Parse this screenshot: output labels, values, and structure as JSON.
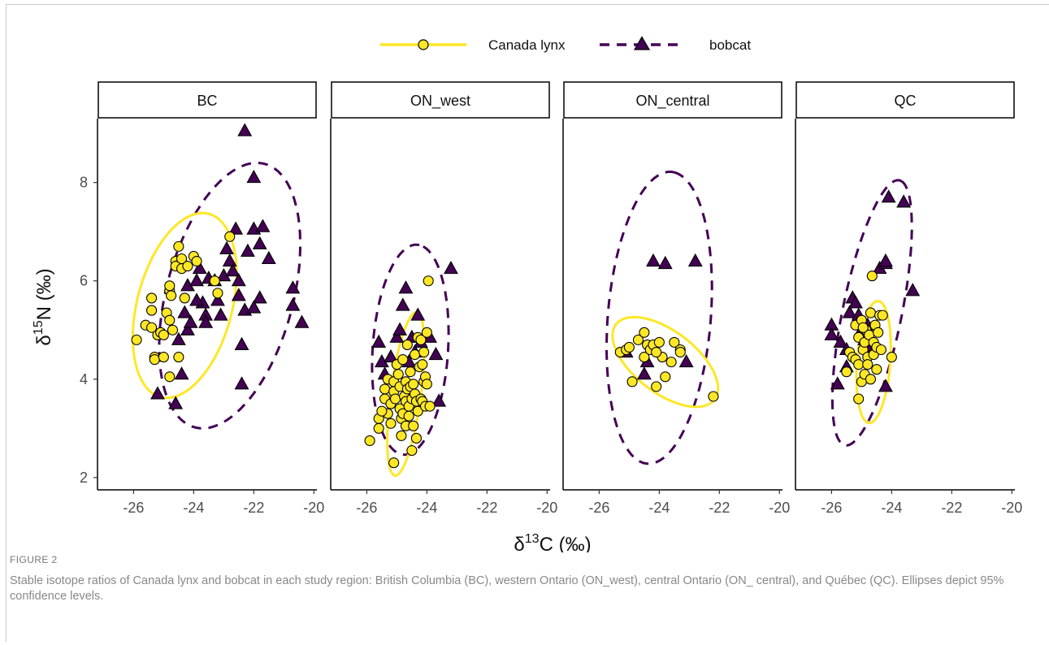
{
  "caption": {
    "label": "FIGURE 2",
    "text": "Stable isotope ratios of Canada lynx and bobcat in each study region: British Columbia (BC), western Ontario (ON_west), central Ontario (ON_ central), and Québec (QC). Ellipses depict 95% confidence levels."
  },
  "colors": {
    "lynx_fill": "#FDE725",
    "lynx_line": "#FDE725",
    "bobcat_fill": "#440154",
    "bobcat_line": "#440154",
    "marker_outline": "#000000",
    "strip_border": "#000000"
  },
  "chart_data": {
    "type": "scatter",
    "facets": [
      "BC",
      "ON_west",
      "ON_central",
      "QC"
    ],
    "xlabel": "δ13C (‰)",
    "ylabel": "δ15N (‰)",
    "xlim": [
      -27.2,
      -19.9
    ],
    "ylim": [
      1.75,
      9.3
    ],
    "xticks": [
      -26,
      -24,
      -22,
      -20
    ],
    "yticks": [
      2,
      4,
      6,
      8
    ],
    "legend_position": "top",
    "grid": false,
    "series": [
      {
        "name": "Canada lynx",
        "marker": "circle",
        "line": "solid",
        "panels": {
          "BC": [
            [
              -25.9,
              4.8
            ],
            [
              -25.6,
              5.1
            ],
            [
              -25.4,
              5.4
            ],
            [
              -25.4,
              5.65
            ],
            [
              -25.3,
              4.45
            ],
            [
              -25.2,
              4.9
            ],
            [
              -25.4,
              5.05
            ],
            [
              -25.1,
              4.95
            ],
            [
              -25.3,
              4.4
            ],
            [
              -25.0,
              4.9
            ],
            [
              -25.0,
              4.45
            ],
            [
              -24.9,
              5.35
            ],
            [
              -24.8,
              5.8
            ],
            [
              -24.8,
              5.9
            ],
            [
              -24.75,
              5.7
            ],
            [
              -24.6,
              6.4
            ],
            [
              -24.6,
              6.3
            ],
            [
              -24.5,
              6.7
            ],
            [
              -24.4,
              6.45
            ],
            [
              -24.4,
              6.25
            ],
            [
              -24.3,
              5.65
            ],
            [
              -24.8,
              4.05
            ],
            [
              -24.7,
              5.0
            ],
            [
              -24.2,
              6.3
            ],
            [
              -24.0,
              6.5
            ],
            [
              -23.9,
              6.4
            ],
            [
              -23.3,
              6.0
            ],
            [
              -23.2,
              5.75
            ],
            [
              -22.8,
              6.9
            ],
            [
              -24.5,
              4.45
            ],
            [
              -24.8,
              5.2
            ]
          ],
          "ON_west": [
            [
              -25.9,
              2.75
            ],
            [
              -25.6,
              3.0
            ],
            [
              -25.6,
              3.2
            ],
            [
              -25.4,
              3.8
            ],
            [
              -25.4,
              3.6
            ],
            [
              -25.3,
              4.0
            ],
            [
              -25.3,
              3.3
            ],
            [
              -25.2,
              3.5
            ],
            [
              -25.2,
              3.1
            ],
            [
              -25.1,
              2.3
            ],
            [
              -25.1,
              3.75
            ],
            [
              -25.1,
              3.95
            ],
            [
              -25.05,
              3.6
            ],
            [
              -25.0,
              4.3
            ],
            [
              -24.95,
              4.1
            ],
            [
              -24.9,
              3.85
            ],
            [
              -24.9,
              3.4
            ],
            [
              -24.85,
              3.2
            ],
            [
              -24.85,
              2.85
            ],
            [
              -24.8,
              4.4
            ],
            [
              -24.8,
              3.3
            ],
            [
              -24.75,
              3.65
            ],
            [
              -24.7,
              3.95
            ],
            [
              -24.7,
              3.55
            ],
            [
              -24.7,
              3.05
            ],
            [
              -24.65,
              4.7
            ],
            [
              -24.65,
              3.8
            ],
            [
              -24.6,
              3.45
            ],
            [
              -24.6,
              3.25
            ],
            [
              -24.55,
              4.15
            ],
            [
              -24.55,
              3.85
            ],
            [
              -24.5,
              3.6
            ],
            [
              -24.5,
              2.55
            ],
            [
              -24.45,
              3.05
            ],
            [
              -24.45,
              3.9
            ],
            [
              -24.4,
              4.5
            ],
            [
              -24.4,
              3.7
            ],
            [
              -24.35,
              3.55
            ],
            [
              -24.35,
              2.8
            ],
            [
              -24.3,
              4.85
            ],
            [
              -24.3,
              3.35
            ],
            [
              -24.25,
              4.25
            ],
            [
              -24.2,
              4.8
            ],
            [
              -24.2,
              3.6
            ],
            [
              -24.15,
              4.3
            ],
            [
              -24.15,
              3.55
            ],
            [
              -24.1,
              4.55
            ],
            [
              -24.1,
              3.95
            ],
            [
              -24.05,
              3.45
            ],
            [
              -24.05,
              4.05
            ],
            [
              -24.0,
              4.95
            ],
            [
              -24.0,
              3.9
            ],
            [
              -23.95,
              6.0
            ],
            [
              -23.9,
              3.45
            ],
            [
              -25.5,
              3.35
            ]
          ],
          "ON_central": [
            [
              -25.3,
              4.55
            ],
            [
              -25.1,
              4.6
            ],
            [
              -25.0,
              4.65
            ],
            [
              -24.9,
              3.95
            ],
            [
              -24.7,
              4.8
            ],
            [
              -24.5,
              4.45
            ],
            [
              -24.5,
              4.95
            ],
            [
              -24.4,
              4.7
            ],
            [
              -24.3,
              4.6
            ],
            [
              -24.2,
              4.7
            ],
            [
              -24.1,
              3.85
            ],
            [
              -24.0,
              4.75
            ],
            [
              -23.9,
              4.45
            ],
            [
              -23.8,
              4.05
            ],
            [
              -23.6,
              4.35
            ],
            [
              -23.5,
              4.75
            ],
            [
              -23.3,
              4.6
            ],
            [
              -23.3,
              4.55
            ],
            [
              -24.1,
              4.55
            ],
            [
              -22.2,
              3.65
            ]
          ],
          "QC": [
            [
              -25.5,
              4.15
            ],
            [
              -25.4,
              4.55
            ],
            [
              -25.3,
              4.45
            ],
            [
              -25.2,
              5.1
            ],
            [
              -25.2,
              4.4
            ],
            [
              -25.1,
              4.85
            ],
            [
              -25.1,
              4.3
            ],
            [
              -25.0,
              3.95
            ],
            [
              -25.0,
              5.2
            ],
            [
              -24.95,
              4.6
            ],
            [
              -24.9,
              4.1
            ],
            [
              -24.9,
              4.75
            ],
            [
              -24.85,
              5.0
            ],
            [
              -24.8,
              4.45
            ],
            [
              -24.8,
              4.3
            ],
            [
              -24.75,
              4.9
            ],
            [
              -24.7,
              4.0
            ],
            [
              -24.7,
              5.35
            ],
            [
              -24.65,
              6.1
            ],
            [
              -24.6,
              4.75
            ],
            [
              -24.6,
              4.5
            ],
            [
              -24.55,
              5.1
            ],
            [
              -24.5,
              4.2
            ],
            [
              -24.5,
              4.65
            ],
            [
              -24.45,
              4.95
            ],
            [
              -24.4,
              5.3
            ],
            [
              -24.35,
              4.6
            ],
            [
              -24.3,
              5.3
            ],
            [
              -24.0,
              4.45
            ],
            [
              -25.1,
              3.6
            ],
            [
              -24.95,
              5.05
            ]
          ]
        },
        "ellipses": {
          "BC": {
            "cx": -24.3,
            "cy": 5.5,
            "rx": 2.1,
            "ry": 1.45,
            "angle": 52
          },
          "ON_west": {
            "cx": -24.7,
            "cy": 3.7,
            "rx": 1.7,
            "ry": 0.5,
            "angle": 77
          },
          "ON_central": {
            "cx": -23.8,
            "cy": 4.35,
            "rx": 1.85,
            "ry": 0.7,
            "angle": -20
          },
          "QC": {
            "cx": -24.6,
            "cy": 4.35,
            "rx": 1.25,
            "ry": 0.55,
            "angle": 82
          }
        }
      },
      {
        "name": "bobcat",
        "marker": "triangle",
        "line": "dashed",
        "panels": {
          "BC": [
            [
              -25.2,
              3.7
            ],
            [
              -24.6,
              3.5
            ],
            [
              -24.4,
              4.1
            ],
            [
              -24.5,
              4.8
            ],
            [
              -24.2,
              5.0
            ],
            [
              -24.3,
              5.35
            ],
            [
              -24.2,
              5.9
            ],
            [
              -23.9,
              6.0
            ],
            [
              -23.8,
              6.25
            ],
            [
              -23.7,
              5.55
            ],
            [
              -23.6,
              5.3
            ],
            [
              -23.5,
              6.05
            ],
            [
              -23.3,
              6.0
            ],
            [
              -23.2,
              5.6
            ],
            [
              -23.1,
              5.3
            ],
            [
              -23.0,
              6.1
            ],
            [
              -22.9,
              6.65
            ],
            [
              -22.8,
              6.4
            ],
            [
              -22.7,
              6.2
            ],
            [
              -22.6,
              7.05
            ],
            [
              -22.5,
              6.0
            ],
            [
              -22.5,
              5.7
            ],
            [
              -22.3,
              5.4
            ],
            [
              -22.2,
              6.6
            ],
            [
              -22.0,
              7.05
            ],
            [
              -21.8,
              6.75
            ],
            [
              -21.7,
              7.1
            ],
            [
              -21.5,
              6.45
            ],
            [
              -21.8,
              5.65
            ],
            [
              -22.0,
              5.45
            ],
            [
              -22.4,
              4.7
            ],
            [
              -22.4,
              3.9
            ],
            [
              -22.3,
              9.05
            ],
            [
              -22.0,
              8.1
            ],
            [
              -20.7,
              5.85
            ],
            [
              -20.7,
              5.5
            ],
            [
              -20.4,
              5.15
            ],
            [
              -23.6,
              5.15
            ],
            [
              -23.9,
              5.6
            ],
            [
              -24.1,
              5.15
            ]
          ],
          "ON_west": [
            [
              -25.6,
              4.75
            ],
            [
              -25.5,
              4.35
            ],
            [
              -25.4,
              4.1
            ],
            [
              -25.2,
              4.45
            ],
            [
              -25.0,
              4.85
            ],
            [
              -24.9,
              5.0
            ],
            [
              -24.8,
              5.5
            ],
            [
              -24.7,
              5.85
            ],
            [
              -24.7,
              3.5
            ],
            [
              -24.6,
              4.35
            ],
            [
              -24.5,
              4.85
            ],
            [
              -24.4,
              4.55
            ],
            [
              -24.3,
              5.3
            ],
            [
              -24.2,
              4.75
            ],
            [
              -23.9,
              4.85
            ],
            [
              -23.7,
              4.5
            ],
            [
              -23.6,
              3.55
            ],
            [
              -23.2,
              6.25
            ]
          ],
          "ON_central": [
            [
              -25.1,
              4.55
            ],
            [
              -24.5,
              4.1
            ],
            [
              -24.4,
              4.35
            ],
            [
              -24.2,
              6.4
            ],
            [
              -23.8,
              6.35
            ],
            [
              -23.1,
              4.35
            ],
            [
              -22.8,
              6.4
            ]
          ],
          "QC": [
            [
              -26.0,
              5.1
            ],
            [
              -26.0,
              4.9
            ],
            [
              -25.8,
              3.9
            ],
            [
              -25.7,
              4.75
            ],
            [
              -25.5,
              4.6
            ],
            [
              -25.4,
              5.35
            ],
            [
              -25.3,
              5.65
            ],
            [
              -25.2,
              5.55
            ],
            [
              -25.1,
              5.3
            ],
            [
              -25.0,
              5.0
            ],
            [
              -24.9,
              4.8
            ],
            [
              -24.8,
              5.1
            ],
            [
              -24.7,
              4.65
            ],
            [
              -24.4,
              6.25
            ],
            [
              -24.2,
              6.35
            ],
            [
              -24.2,
              6.4
            ],
            [
              -24.2,
              3.85
            ],
            [
              -24.1,
              7.7
            ],
            [
              -23.6,
              7.6
            ],
            [
              -23.3,
              5.8
            ],
            [
              -25.5,
              4.25
            ]
          ]
        },
        "ellipses": {
          "BC": {
            "cx": -22.8,
            "cy": 5.7,
            "rx": 3.0,
            "ry": 1.95,
            "angle": 55
          },
          "ON_west": {
            "cx": -24.55,
            "cy": 4.6,
            "rx": 2.15,
            "ry": 1.25,
            "angle": 82
          },
          "ON_central": {
            "cx": -24.0,
            "cy": 5.25,
            "rx": 3.0,
            "ry": 1.7,
            "angle": 80
          },
          "QC": {
            "cx": -24.65,
            "cy": 5.35,
            "rx": 2.85,
            "ry": 0.95,
            "angle": 70
          }
        }
      }
    ]
  }
}
